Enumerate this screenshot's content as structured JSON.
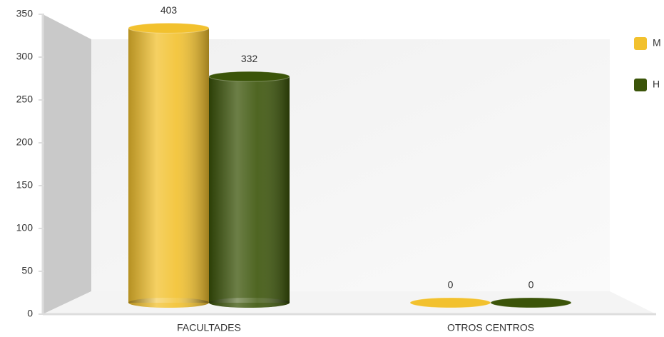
{
  "chart_data": {
    "type": "bar3d",
    "categories": [
      "FACULTADES",
      "OTROS CENTROS"
    ],
    "series": [
      {
        "name": "M",
        "color": "#f2c12e",
        "values": [
          403,
          0
        ]
      },
      {
        "name": "H",
        "color": "#3b5409",
        "values": [
          332,
          0
        ]
      }
    ],
    "ylim": [
      0,
      350
    ],
    "yticks": [
      0,
      50,
      100,
      150,
      200,
      250,
      300,
      350
    ],
    "legend": "right"
  }
}
